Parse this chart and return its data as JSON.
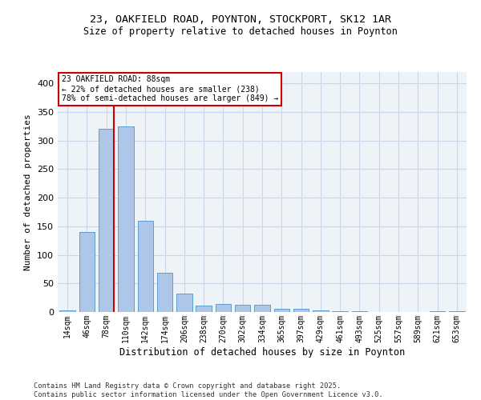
{
  "title_line1": "23, OAKFIELD ROAD, POYNTON, STOCKPORT, SK12 1AR",
  "title_line2": "Size of property relative to detached houses in Poynton",
  "xlabel": "Distribution of detached houses by size in Poynton",
  "ylabel": "Number of detached properties",
  "categories": [
    "14sqm",
    "46sqm",
    "78sqm",
    "110sqm",
    "142sqm",
    "174sqm",
    "206sqm",
    "238sqm",
    "270sqm",
    "302sqm",
    "334sqm",
    "365sqm",
    "397sqm",
    "429sqm",
    "461sqm",
    "493sqm",
    "525sqm",
    "557sqm",
    "589sqm",
    "621sqm",
    "653sqm"
  ],
  "values": [
    3,
    140,
    320,
    325,
    160,
    68,
    32,
    11,
    14,
    12,
    12,
    6,
    5,
    3,
    1,
    1,
    0,
    0,
    0,
    2,
    1
  ],
  "bar_color": "#aec6e8",
  "bar_edge_color": "#5a9fd4",
  "grid_color": "#c8d8e8",
  "bg_color": "#eef3f8",
  "vline_x": 2,
  "vline_color": "#cc0000",
  "box_text_line1": "23 OAKFIELD ROAD: 88sqm",
  "box_text_line2": "← 22% of detached houses are smaller (238)",
  "box_text_line3": "78% of semi-detached houses are larger (849) →",
  "box_color": "#cc0000",
  "footer_line1": "Contains HM Land Registry data © Crown copyright and database right 2025.",
  "footer_line2": "Contains public sector information licensed under the Open Government Licence v3.0.",
  "ylim": [
    0,
    420
  ],
  "yticks": [
    0,
    50,
    100,
    150,
    200,
    250,
    300,
    350,
    400
  ]
}
